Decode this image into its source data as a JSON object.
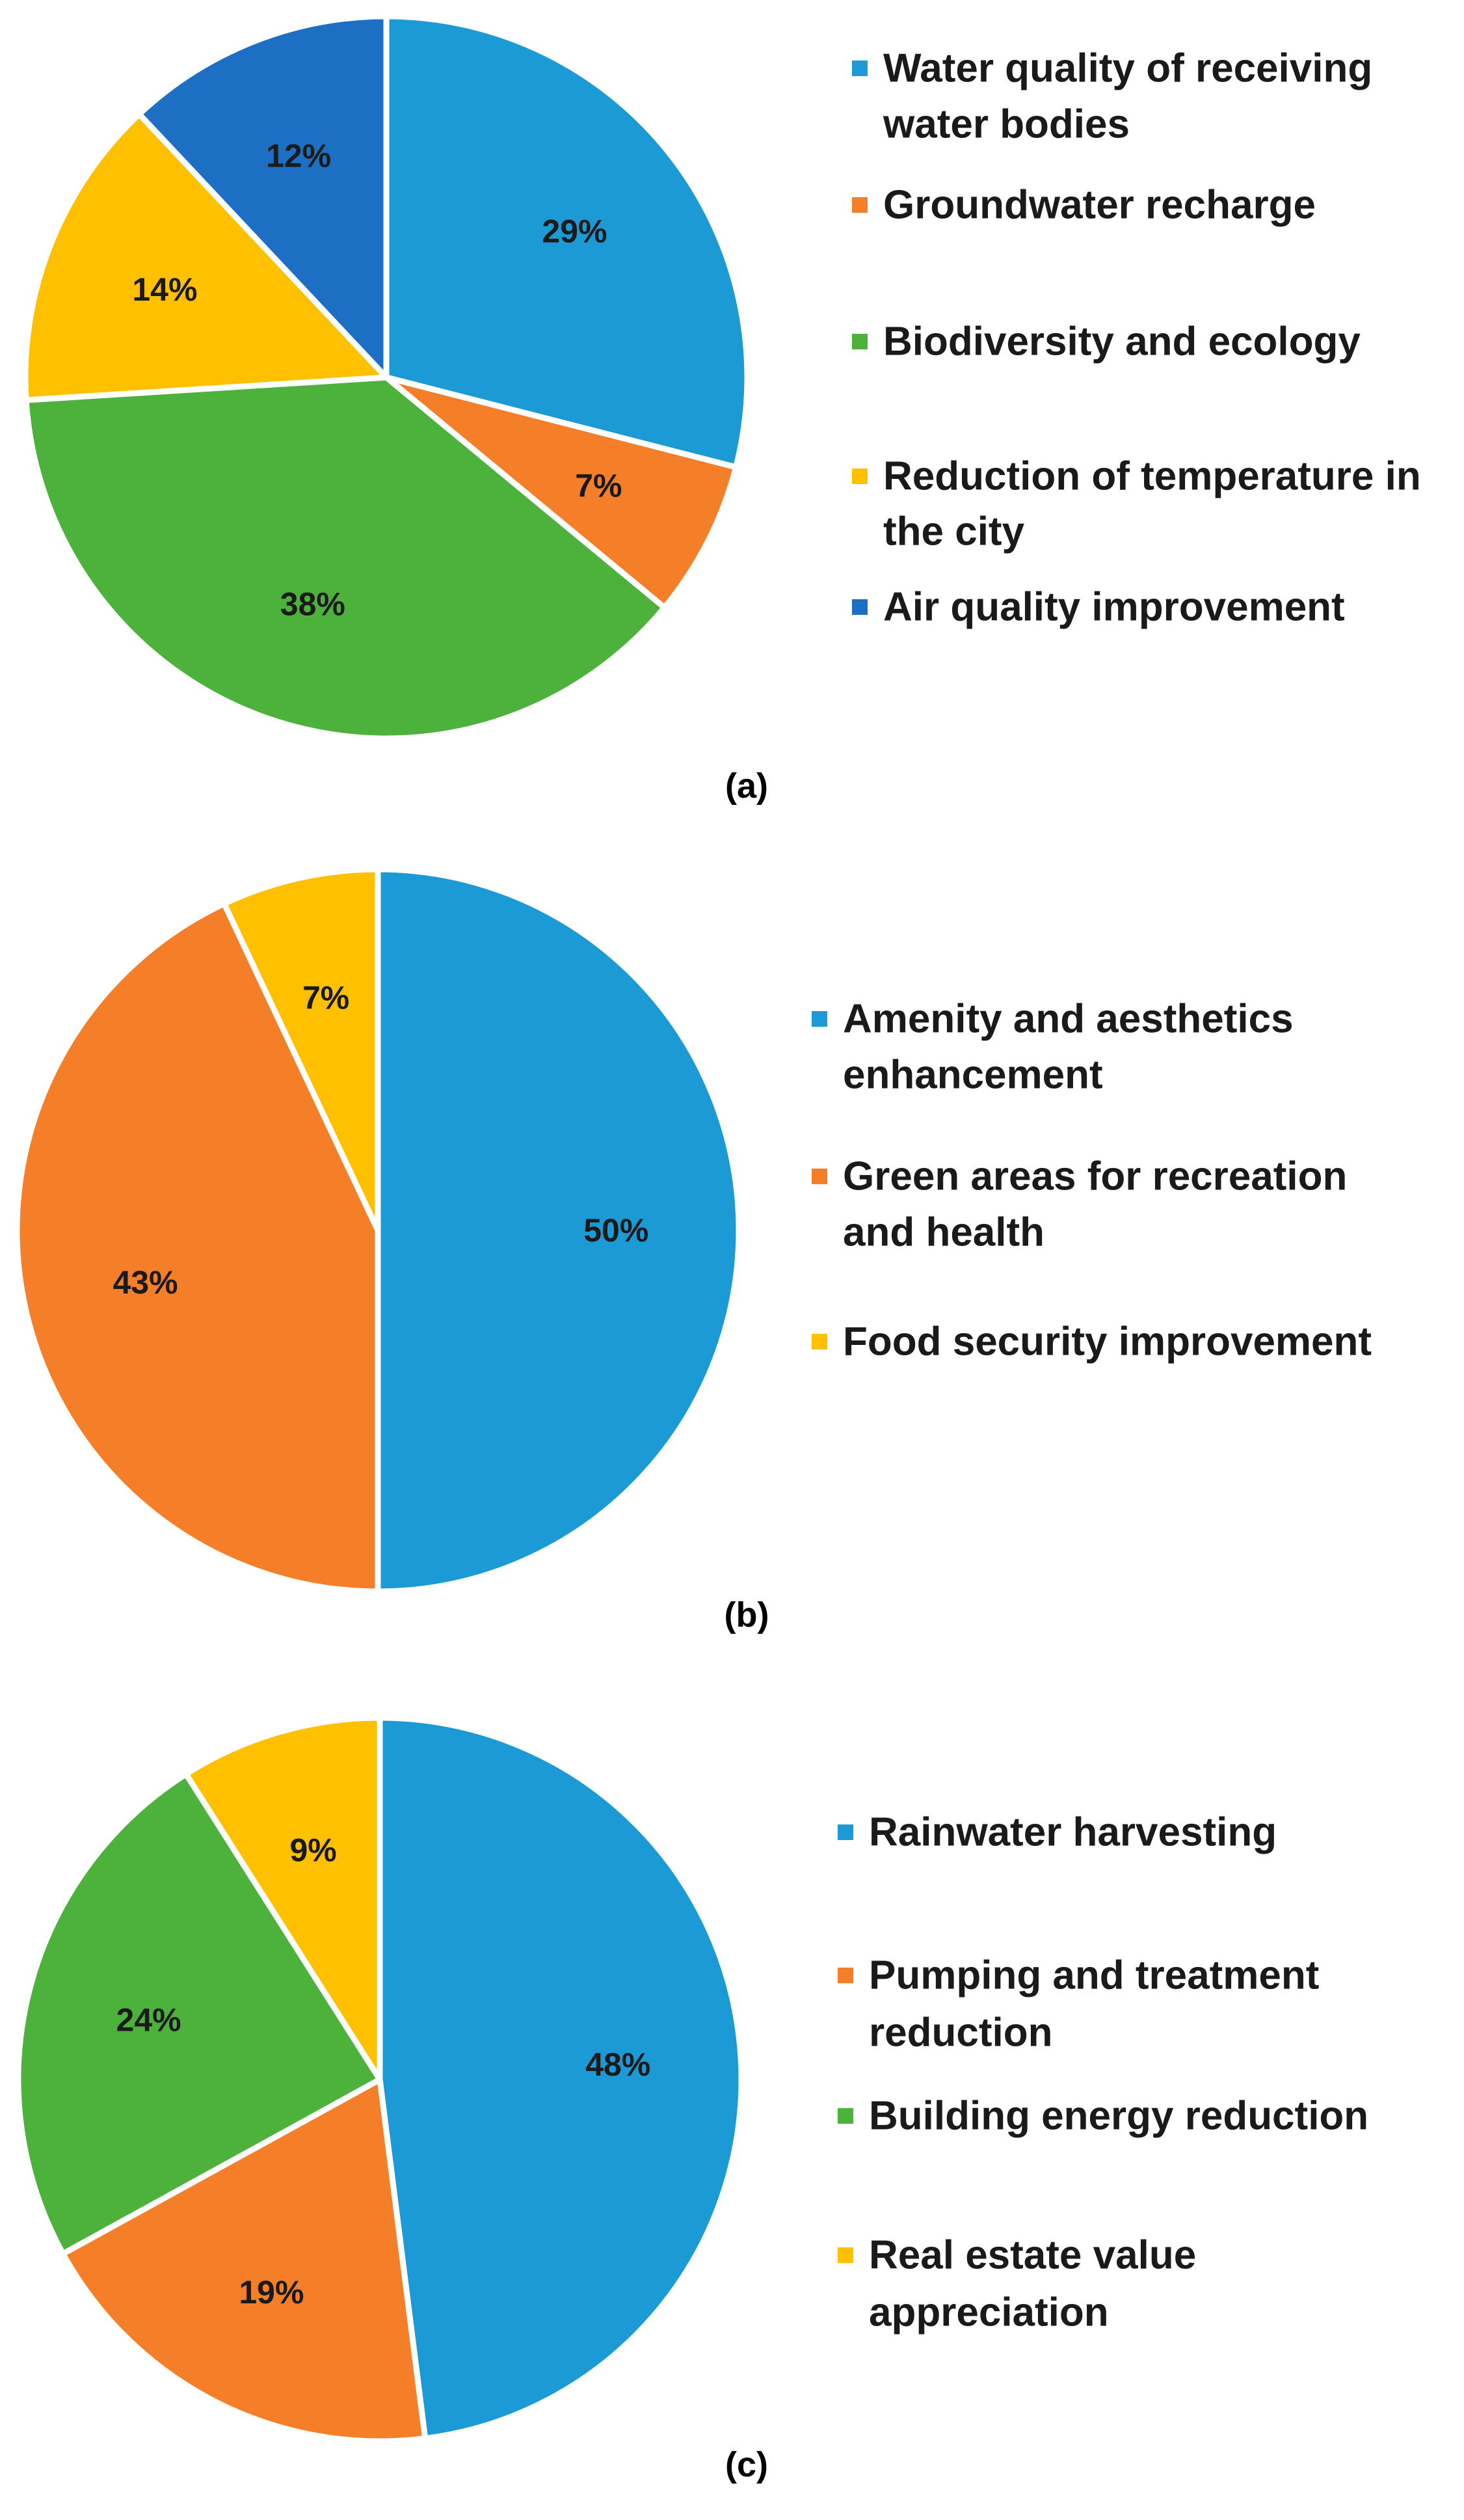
{
  "chart_data": [
    {
      "type": "pie",
      "panel_label": "(a)",
      "title": "",
      "slices": [
        {
          "label": "Water quality of receiving water bodies",
          "legend_lines": [
            "Water quality of receiving",
            "water bodies"
          ],
          "value": 29,
          "display": "29%",
          "color": "#1b9ad6"
        },
        {
          "label": "Groundwater recharge",
          "legend_lines": [
            "Groundwater recharge"
          ],
          "value": 7,
          "display": "7%",
          "color": "#f57f28"
        },
        {
          "label": "Biodiversity and ecology",
          "legend_lines": [
            "Biodiversity and ecology"
          ],
          "value": 38,
          "display": "38%",
          "color": "#4db23b"
        },
        {
          "label": "Reduction of temperature in the city",
          "legend_lines": [
            "Reduction of temperature in",
            "the city"
          ],
          "value": 14,
          "display": "14%",
          "color": "#ffc000"
        },
        {
          "label": "Air quality improvement",
          "legend_lines": [
            "Air quality improvement"
          ],
          "value": 12,
          "display": "12%",
          "color": "#1d6fc4"
        }
      ]
    },
    {
      "type": "pie",
      "panel_label": "(b)",
      "title": "",
      "slices": [
        {
          "label": "Amenity and aesthetics enhancement",
          "legend_lines": [
            "Amenity and aesthetics",
            "enhancement"
          ],
          "value": 50,
          "display": "50%",
          "color": "#1b9ad6"
        },
        {
          "label": "Green areas for recreation and health",
          "legend_lines": [
            "Green areas for recreation",
            "and health"
          ],
          "value": 43,
          "display": "43%",
          "color": "#f57f28"
        },
        {
          "label": "Food security improvement",
          "legend_lines": [
            "Food security improvement"
          ],
          "value": 7,
          "display": "7%",
          "color": "#ffc000"
        }
      ]
    },
    {
      "type": "pie",
      "panel_label": "(c)",
      "title": "",
      "slices": [
        {
          "label": "Rainwater harvesting",
          "legend_lines": [
            "Rainwater harvesting"
          ],
          "value": 48,
          "display": "48%",
          "color": "#1b9ad6"
        },
        {
          "label": "Pumping and treatment reduction",
          "legend_lines": [
            "Pumping and treatment",
            "reduction"
          ],
          "value": 19,
          "display": "19%",
          "color": "#f57f28"
        },
        {
          "label": "Building energy reduction",
          "legend_lines": [
            "Building energy reduction"
          ],
          "value": 24,
          "display": "24%",
          "color": "#4db23b"
        },
        {
          "label": "Real estate value appreciation",
          "legend_lines": [
            "Real estate value",
            "appreciation"
          ],
          "value": 9,
          "display": "9%",
          "color": "#ffc000"
        }
      ]
    }
  ]
}
